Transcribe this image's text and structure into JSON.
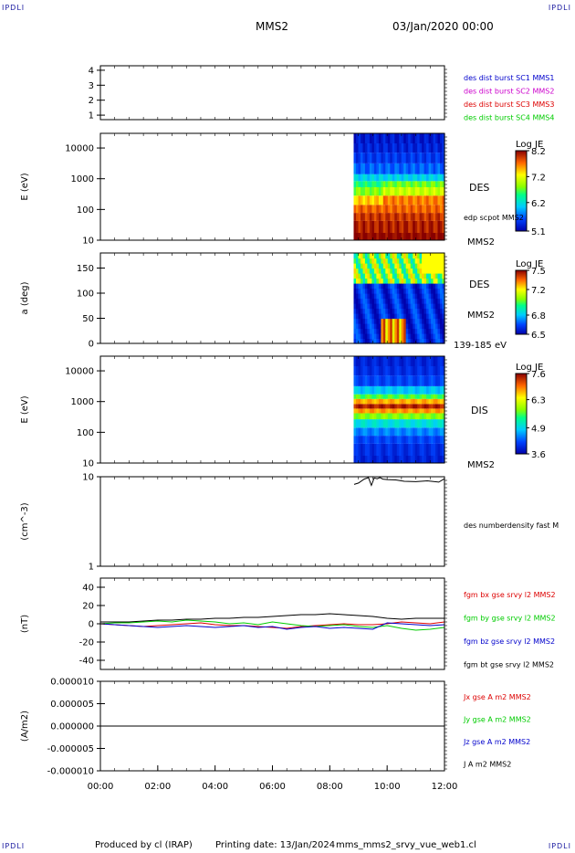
{
  "corner_label": "IPDLI",
  "header": {
    "mission": "MMS2",
    "datetime": "03/Jan/2020 00:00"
  },
  "footer": {
    "credit": "Produced by cl (IRAP)",
    "printing": "Printing date: 13/Jan/2024",
    "file": "mms_mms2_srvy_vue_web1.cl"
  },
  "colors": {
    "mms1": "#0000cc",
    "mms2": "#cc00cc",
    "mms3": "#dd0000",
    "mms4": "#00cc00",
    "bx": "#dd0000",
    "by": "#00cc00",
    "bz": "#0000cc",
    "bt": "#000000"
  },
  "chart_data": [
    {
      "type": "line",
      "panel": "availability",
      "yticks": [
        "1",
        "2",
        "3",
        "4"
      ],
      "ylim": [
        0.7,
        4.3
      ],
      "legend": [
        {
          "label": "des dist burst SC1 MMS1",
          "color": "#0000cc"
        },
        {
          "label": "des dist burst SC2 MMS2",
          "color": "#cc00cc"
        },
        {
          "label": "des dist burst SC3 MMS3",
          "color": "#dd0000"
        },
        {
          "label": "des dist burst SC4 MMS4",
          "color": "#00cc00"
        }
      ],
      "series": []
    },
    {
      "type": "heatmap",
      "panel": "electron-energy-spectrogram",
      "ylabel": "E (eV)",
      "yscale": "log",
      "ylim": [
        10,
        30000
      ],
      "yticks": [
        "10",
        "100",
        "1000",
        "10000"
      ],
      "data_start": "08:50",
      "data_end": "12:00",
      "energy_levels": [
        10,
        30,
        60,
        100,
        200,
        400,
        700,
        1000,
        2000,
        5000,
        10000,
        20000
      ],
      "colorbar": {
        "title": "Log JE",
        "ticks": [
          "5.1",
          "6.2",
          "7.2",
          "8.2"
        ],
        "range": [
          5.1,
          8.2
        ]
      },
      "side_labels": [
        "DES",
        "edp scpot MMS2",
        "MMS2"
      ]
    },
    {
      "type": "heatmap",
      "panel": "electron-pitch-angle",
      "ylabel": "a (deg)",
      "ylim": [
        0,
        180
      ],
      "yticks": [
        "0",
        "50",
        "100",
        "150"
      ],
      "data_start": "08:50",
      "data_end": "12:00",
      "colorbar": {
        "title": "Log JE",
        "ticks": [
          "6.5",
          "6.8",
          "7.2",
          "7.5"
        ],
        "range": [
          6.5,
          7.5
        ]
      },
      "side_labels": [
        "DES",
        "MMS2",
        "139-185 eV"
      ]
    },
    {
      "type": "heatmap",
      "panel": "ion-energy-spectrogram",
      "ylabel": "E (eV)",
      "yscale": "log",
      "ylim": [
        10,
        30000
      ],
      "yticks": [
        "10",
        "100",
        "1000",
        "10000"
      ],
      "data_start": "08:50",
      "data_end": "12:00",
      "colorbar": {
        "title": "Log JE",
        "ticks": [
          "3.6",
          "4.9",
          "6.3",
          "7.6"
        ],
        "range": [
          3.6,
          7.6
        ]
      },
      "side_labels": [
        "DIS",
        "MMS2"
      ]
    },
    {
      "type": "line",
      "panel": "density",
      "ylabel": "(cm^-3)",
      "yscale": "log",
      "ylim": [
        1,
        10
      ],
      "yticks": [
        "1",
        "10"
      ],
      "legend": [
        {
          "label": "des numberdensity fast M",
          "color": "#000000"
        }
      ],
      "series": [
        {
          "name": "des numberdensity fast M",
          "color": "#000000",
          "x": [
            8.85,
            9.0,
            9.2,
            9.35,
            9.45,
            9.55,
            9.65,
            9.75,
            9.85,
            10.0,
            10.3,
            10.6,
            11.0,
            11.4,
            11.8,
            12.0
          ],
          "y": [
            8.2,
            8.5,
            9.4,
            9.8,
            8.0,
            9.7,
            9.5,
            9.8,
            9.4,
            9.3,
            9.2,
            8.9,
            8.8,
            9.0,
            8.7,
            9.5
          ]
        }
      ]
    },
    {
      "type": "line",
      "panel": "magnetic-field",
      "ylabel": "(nT)",
      "ylim": [
        -50,
        50
      ],
      "yticks": [
        "-40",
        "-20",
        "0",
        "20",
        "40"
      ],
      "legend": [
        {
          "label": "fgm bx gse srvy l2 MMS2",
          "color": "#dd0000"
        },
        {
          "label": "fgm by gse srvy l2 MMS2",
          "color": "#00cc00"
        },
        {
          "label": "fgm bz gse srvy l2 MMS2",
          "color": "#0000cc"
        },
        {
          "label": "fgm bt gse srvy l2 MMS2",
          "color": "#000000"
        }
      ],
      "series": [
        {
          "name": "fgm bx gse srvy l2 MMS2",
          "color": "#dd0000",
          "x": [
            0,
            0.5,
            1,
            1.5,
            2,
            2.5,
            3,
            3.5,
            4,
            4.5,
            5,
            5.5,
            6,
            6.5,
            7,
            7.5,
            8,
            8.5,
            9,
            9.5,
            10,
            10.5,
            11,
            11.5,
            12
          ],
          "y": [
            0,
            -1,
            -2,
            -3,
            -2,
            -1,
            0,
            1,
            -1,
            -2,
            -2,
            -3,
            -4,
            -5,
            -3,
            -2,
            -1,
            0,
            -1,
            -1,
            0,
            2,
            1,
            0,
            2
          ]
        },
        {
          "name": "fgm by gse srvy l2 MMS2",
          "color": "#00cc00",
          "x": [
            0,
            0.5,
            1,
            1.5,
            2,
            2.5,
            3,
            3.5,
            4,
            4.5,
            5,
            5.5,
            6,
            6.5,
            7,
            7.5,
            8,
            8.5,
            9,
            9.5,
            10,
            10.5,
            11,
            11.5,
            12
          ],
          "y": [
            0,
            1,
            1,
            2,
            3,
            2,
            4,
            3,
            2,
            0,
            1,
            -1,
            2,
            0,
            -2,
            -3,
            -2,
            -1,
            -3,
            -4,
            -2,
            -5,
            -7,
            -6,
            -4
          ]
        },
        {
          "name": "fgm bz gse srvy l2 MMS2",
          "color": "#0000cc",
          "x": [
            0,
            0.5,
            1,
            1.5,
            2,
            2.5,
            3,
            3.5,
            4,
            4.5,
            5,
            5.5,
            6,
            6.5,
            7,
            7.5,
            8,
            8.5,
            9,
            9.5,
            10,
            10.5,
            11,
            11.5,
            12
          ],
          "y": [
            0,
            -1,
            -2,
            -3,
            -4,
            -3,
            -2,
            -3,
            -4,
            -3,
            -2,
            -4,
            -3,
            -6,
            -4,
            -3,
            -5,
            -4,
            -5,
            -6,
            1,
            0,
            -1,
            -2,
            -1
          ]
        },
        {
          "name": "fgm bt gse srvy l2 MMS2",
          "color": "#000000",
          "x": [
            0,
            0.5,
            1,
            1.5,
            2,
            2.5,
            3,
            3.5,
            4,
            4.5,
            5,
            5.5,
            6,
            6.5,
            7,
            7.5,
            8,
            8.5,
            9,
            9.5,
            10,
            10.5,
            11,
            11.5,
            12
          ],
          "y": [
            2,
            2,
            2,
            3,
            4,
            4,
            5,
            5,
            6,
            6,
            7,
            7,
            8,
            9,
            10,
            10,
            11,
            10,
            9,
            8,
            6,
            5,
            6,
            6,
            6
          ]
        }
      ]
    },
    {
      "type": "line",
      "panel": "current-density",
      "ylabel": "(A/m2)",
      "ylim": [
        -1e-05,
        1e-05
      ],
      "yticks": [
        "-0.000010",
        "-0.000005",
        "0.000000",
        "0.000005",
        "0.000010"
      ],
      "xlim": [
        0,
        12
      ],
      "xticks": [
        "00:00",
        "02:00",
        "04:00",
        "06:00",
        "08:00",
        "10:00",
        "12:00"
      ],
      "legend": [
        {
          "label": "Jx gse A m2 MMS2",
          "color": "#dd0000"
        },
        {
          "label": "Jy gse A m2 MMS2",
          "color": "#00cc00"
        },
        {
          "label": "Jz gse A m2 MMS2",
          "color": "#0000cc"
        },
        {
          "label": "J A m2 MMS2",
          "color": "#000000"
        }
      ],
      "series": [
        {
          "name": "J A m2 MMS2",
          "color": "#000000",
          "x": [
            0,
            12
          ],
          "y": [
            0,
            0
          ]
        }
      ]
    }
  ]
}
